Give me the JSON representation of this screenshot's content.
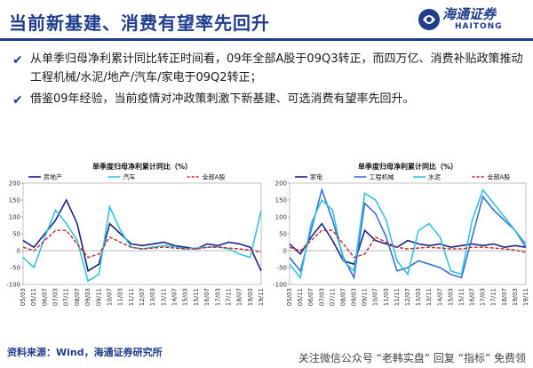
{
  "header": {
    "title": "当前新基建、消费有望率先回升",
    "logo_cn": "海通证券",
    "logo_en": "HAITONG"
  },
  "bullets": [
    "从单季归母净利累计同比转正时间看，09年全部A股于09Q3转正，而四万亿、消费补贴政策推动工程机械/水泥/地产/汽车/家电于09Q2转正；",
    "借鉴09年经验，当前疫情对冲政策刺激下新基建、可选消费有望率先回升。"
  ],
  "source": "资料来源：Wind，海通证券研究所",
  "watermark": "关注微信公众号 “老韩实盘” 回复 “指标” 免费领",
  "colors": {
    "brand": "#1f3d8c",
    "navy": "#1a237e",
    "cyan": "#33c3e0",
    "red": "#c0282d",
    "blue": "#3a6fd8"
  },
  "chart_data": [
    {
      "type": "line",
      "title": "单季度归母净利累计同比（%）",
      "ylim": [
        -100,
        200
      ],
      "yticks": [
        -100,
        -50,
        0,
        50,
        100,
        150,
        200
      ],
      "xticks": [
        "05/03",
        "05/11",
        "06/07",
        "07/03",
        "07/11",
        "08/07",
        "09/03",
        "09/11",
        "10/07",
        "11/03",
        "11/11",
        "12/07",
        "13/03",
        "13/11",
        "14/07",
        "15/03",
        "15/11",
        "16/07",
        "17/03",
        "17/11",
        "18/07",
        "19/03",
        "19/11"
      ],
      "legend": [
        "房地产",
        "汽车",
        "全部A股"
      ],
      "series": [
        {
          "name": "房地产",
          "color": "navy",
          "dash": false,
          "values": [
            30,
            10,
            50,
            90,
            150,
            80,
            -60,
            -40,
            80,
            50,
            20,
            15,
            20,
            25,
            15,
            10,
            5,
            20,
            15,
            25,
            20,
            10,
            -60
          ]
        },
        {
          "name": "汽车",
          "color": "cyan",
          "dash": false,
          "values": [
            -20,
            -50,
            40,
            120,
            80,
            30,
            -90,
            -70,
            130,
            60,
            10,
            5,
            10,
            15,
            12,
            5,
            8,
            10,
            12,
            5,
            -10,
            -20,
            120
          ]
        },
        {
          "name": "全部A股",
          "color": "red",
          "dash": true,
          "values": [
            10,
            0,
            30,
            60,
            60,
            20,
            -20,
            -10,
            40,
            25,
            10,
            5,
            8,
            10,
            8,
            5,
            5,
            10,
            10,
            8,
            5,
            2,
            -5
          ]
        }
      ]
    },
    {
      "type": "line",
      "title": "单季度归母净利累计同比（%）",
      "ylim": [
        -100,
        200
      ],
      "yticks": [
        -100,
        -50,
        0,
        50,
        100,
        150,
        200
      ],
      "xticks": [
        "05/03",
        "05/11",
        "06/07",
        "07/03",
        "07/11",
        "08/07",
        "09/03",
        "09/11",
        "10/07",
        "11/03",
        "11/11",
        "12/07",
        "13/03",
        "13/11",
        "14/07",
        "15/03",
        "15/11",
        "16/07",
        "17/03",
        "17/11",
        "18/07",
        "19/03",
        "19/11"
      ],
      "legend": [
        "家电",
        "工程机械",
        "水泥",
        "全部A股"
      ],
      "series": [
        {
          "name": "家电",
          "color": "navy",
          "dash": false,
          "values": [
            20,
            -10,
            40,
            80,
            30,
            -30,
            -40,
            60,
            30,
            20,
            10,
            30,
            20,
            15,
            20,
            10,
            15,
            20,
            15,
            20,
            10,
            15,
            10
          ]
        },
        {
          "name": "工程机械",
          "color": "blue",
          "dash": false,
          "values": [
            -20,
            -60,
            60,
            180,
            90,
            -20,
            -80,
            140,
            110,
            40,
            -60,
            -50,
            -30,
            -40,
            -50,
            -70,
            -80,
            40,
            160,
            120,
            90,
            60,
            10
          ]
        },
        {
          "name": "水泥",
          "color": "cyan",
          "dash": false,
          "values": [
            -40,
            -80,
            80,
            150,
            120,
            -30,
            -60,
            170,
            150,
            90,
            -30,
            -70,
            60,
            80,
            40,
            -60,
            -70,
            90,
            180,
            140,
            100,
            60,
            20
          ]
        },
        {
          "name": "全部A股",
          "color": "red",
          "dash": true,
          "values": [
            10,
            0,
            30,
            60,
            60,
            20,
            -20,
            -10,
            40,
            25,
            10,
            5,
            8,
            10,
            8,
            5,
            5,
            10,
            10,
            8,
            5,
            2,
            -5
          ]
        }
      ]
    }
  ]
}
